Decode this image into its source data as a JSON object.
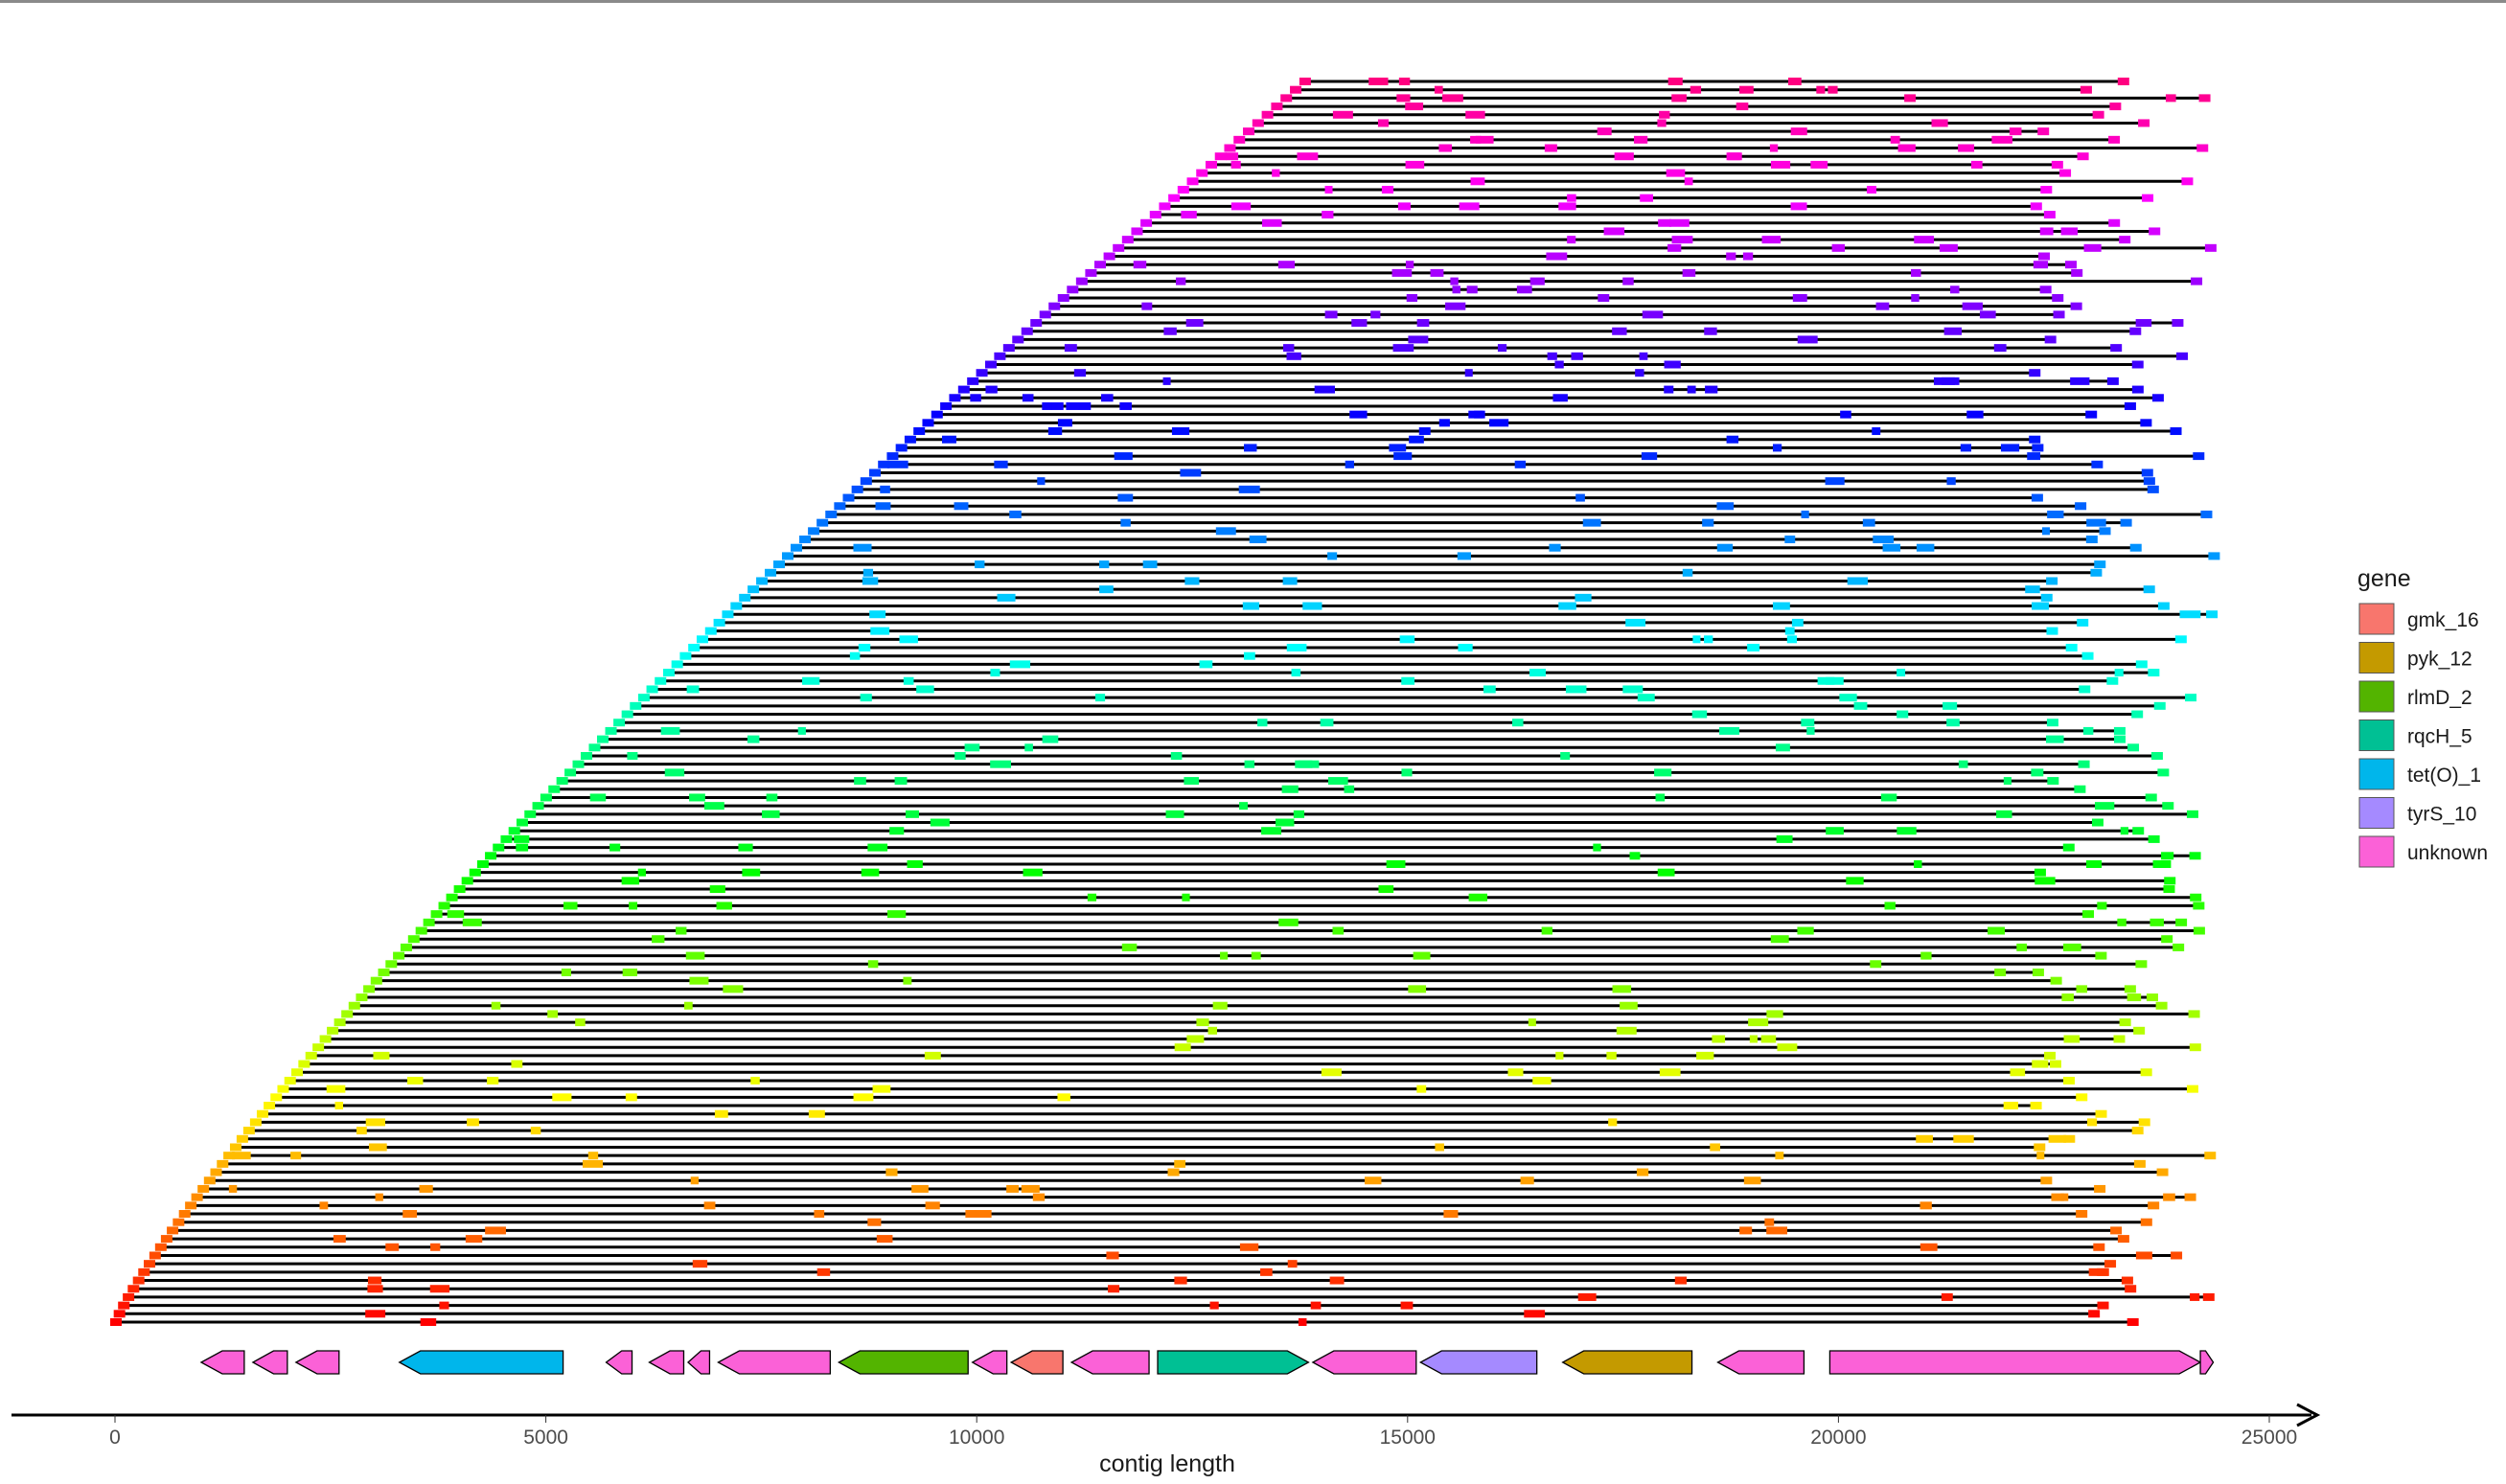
{
  "chart_data": {
    "type": "gene-arrow-map",
    "xlabel": "contig length",
    "xlim": [
      0,
      25000
    ],
    "x_ticks": [
      0,
      5000,
      10000,
      15000,
      20000,
      25000
    ],
    "tick_labels": [
      "0",
      "5000",
      "10000",
      "15000",
      "20000",
      "25000"
    ],
    "grid": false,
    "legend": {
      "title": "gene",
      "position": "right",
      "entries": [
        {
          "name": "gmk_16",
          "color": "#f8766d"
        },
        {
          "name": "pyk_12",
          "color": "#c49a00"
        },
        {
          "name": "rlmD_2",
          "color": "#53b400"
        },
        {
          "name": "rqcH_5",
          "color": "#00c094"
        },
        {
          "name": "tet(O)_1",
          "color": "#00b6eb"
        },
        {
          "name": "tyrS_10",
          "color": "#a58aff"
        },
        {
          "name": "unknown",
          "color": "#fb61d7"
        }
      ]
    },
    "genes": [
      {
        "start": 1000,
        "end": 1500,
        "strand": "-",
        "gene": "unknown"
      },
      {
        "start": 1600,
        "end": 2000,
        "strand": "-",
        "gene": "unknown"
      },
      {
        "start": 2100,
        "end": 2600,
        "strand": "-",
        "gene": "unknown"
      },
      {
        "start": 3300,
        "end": 5200,
        "strand": "-",
        "gene": "tet(O)_1"
      },
      {
        "start": 5700,
        "end": 6000,
        "strand": "-",
        "gene": "unknown"
      },
      {
        "start": 6200,
        "end": 6600,
        "strand": "-",
        "gene": "unknown"
      },
      {
        "start": 6650,
        "end": 6900,
        "strand": "-",
        "gene": "unknown"
      },
      {
        "start": 7000,
        "end": 8300,
        "strand": "-",
        "gene": "unknown"
      },
      {
        "start": 8400,
        "end": 9900,
        "strand": "-",
        "gene": "rlmD_2"
      },
      {
        "start": 9950,
        "end": 10350,
        "strand": "-",
        "gene": "unknown"
      },
      {
        "start": 10400,
        "end": 11000,
        "strand": "-",
        "gene": "gmk_16"
      },
      {
        "start": 11100,
        "end": 12000,
        "strand": "-",
        "gene": "unknown"
      },
      {
        "start": 12100,
        "end": 13850,
        "strand": "+",
        "gene": "rqcH_5"
      },
      {
        "start": 13900,
        "end": 15100,
        "strand": "-",
        "gene": "unknown"
      },
      {
        "start": 15150,
        "end": 16500,
        "strand": "-",
        "gene": "tyrS_10"
      },
      {
        "start": 16800,
        "end": 18300,
        "strand": "-",
        "gene": "pyk_12"
      },
      {
        "start": 18600,
        "end": 19600,
        "strand": "-",
        "gene": "unknown"
      },
      {
        "start": 19900,
        "end": 24200,
        "strand": "+",
        "gene": "unknown"
      },
      {
        "start": 24200,
        "end": 24350,
        "strand": "+",
        "gene": "unknown"
      }
    ],
    "contig_count": 150,
    "contigs_note": "Stacked contig lines (black) sorted by start offset; starts rise from about 0 to about 13800 and ends range from about 22500 to 24300, with colored rainbow blocks marking matches along each line."
  }
}
